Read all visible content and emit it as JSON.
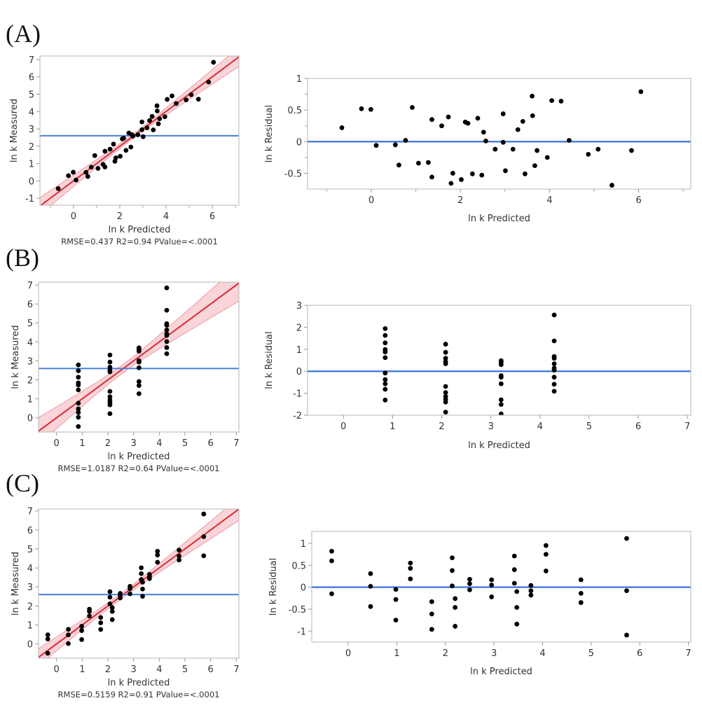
{
  "panels": [
    {
      "label": "(A)",
      "fit": {
        "xlabel": "ln k Predicted",
        "ylabel": "ln k Measured",
        "stats": "RMSE=0.437 R2=0.94 PValue=<.0001"
      },
      "residual": {
        "xlabel": "ln k Predicted",
        "ylabel": "ln k Residual"
      }
    },
    {
      "label": "(B)",
      "fit": {
        "xlabel": "ln k Predicted",
        "ylabel": "ln k Measured",
        "stats": "RMSE=1.0187 R2=0.64 PValue=<.0001"
      },
      "residual": {
        "xlabel": "ln k Predicted",
        "ylabel": "ln k Residual"
      }
    },
    {
      "label": "(C)",
      "fit": {
        "xlabel": "ln k Predicted",
        "ylabel": "ln k Measured",
        "stats": "RMSE=0.5159 R2=0.91 PValue=<.0001"
      },
      "residual": {
        "xlabel": "ln k Predicted",
        "ylabel": "ln k Residual"
      }
    }
  ],
  "colors": {
    "fit_line": "#d62d3a",
    "ci_band": "#f7c6cb",
    "ci_edge": "#f09aa4",
    "mean_line": "#4a7fdc",
    "points": "#000000",
    "frame": "#b5b5b5"
  },
  "chart_data": [
    {
      "id": "A-fit",
      "type": "scatter",
      "title": "",
      "xlabel": "ln k Predicted",
      "ylabel": "ln k Measured",
      "xlim": [
        -1.45,
        7.15
      ],
      "ylim": [
        -1.4,
        7.2
      ],
      "xticks": [
        0,
        2,
        4,
        6
      ],
      "xminor": [
        -1,
        1,
        3,
        5,
        7
      ],
      "yticks": [
        -1,
        0,
        1,
        2,
        3,
        4,
        5,
        6,
        7
      ],
      "mean_line": 2.6,
      "fit": {
        "slope": 1.0,
        "intercept": 0.0,
        "ci_halfwidth_at_mean": 0.12,
        "ci_halfwidth_at_ends": 0.55
      },
      "annotation": "RMSE=0.437 R2=0.94 PValue=<.0001",
      "x": [
        -0.66,
        -0.22,
        -0.01,
        0.11,
        0.54,
        0.62,
        0.77,
        0.92,
        1.06,
        1.28,
        1.36,
        1.36,
        1.58,
        1.73,
        1.79,
        1.83,
        2.02,
        2.11,
        2.17,
        2.27,
        2.39,
        2.48,
        2.52,
        2.57,
        2.78,
        2.96,
        2.96,
        3.01,
        3.18,
        3.29,
        3.4,
        3.45,
        3.61,
        3.62,
        3.67,
        3.72,
        3.95,
        4.05,
        4.26,
        4.44,
        4.87,
        5.09,
        5.4,
        5.84,
        6.05
      ],
      "y": [
        -0.44,
        0.3,
        0.5,
        0.05,
        0.49,
        0.25,
        0.79,
        1.46,
        0.72,
        0.95,
        1.71,
        0.8,
        1.83,
        2.12,
        1.13,
        1.33,
        1.42,
        2.42,
        2.46,
        1.76,
        2.76,
        1.95,
        2.67,
        2.58,
        2.66,
        3.4,
        2.95,
        2.55,
        3.06,
        3.48,
        3.72,
        2.94,
        4.33,
        4.03,
        3.29,
        3.58,
        3.7,
        4.7,
        4.9,
        4.46,
        4.67,
        4.97,
        4.71,
        5.7,
        6.84
      ]
    },
    {
      "id": "A-residual",
      "type": "scatter",
      "xlabel": "ln k Predicted",
      "ylabel": "ln k Residual",
      "xlim": [
        -1.43,
        7.17
      ],
      "ylim": [
        -0.75,
        1.0
      ],
      "xticks": [
        0,
        2,
        4,
        6
      ],
      "xminor": [
        -1,
        1,
        3,
        5,
        7
      ],
      "yticks": [
        -0.5,
        0,
        0.5,
        1
      ],
      "yminor": [
        -0.25,
        0.25,
        0.75
      ],
      "zero_line": 0,
      "x": [
        -0.66,
        -0.22,
        -0.01,
        0.11,
        0.54,
        0.62,
        0.77,
        0.92,
        1.06,
        1.28,
        1.36,
        1.36,
        1.58,
        1.73,
        1.79,
        1.83,
        2.02,
        2.11,
        2.17,
        2.27,
        2.39,
        2.48,
        2.52,
        2.57,
        2.78,
        2.96,
        2.96,
        3.01,
        3.18,
        3.29,
        3.4,
        3.45,
        3.61,
        3.62,
        3.67,
        3.72,
        3.95,
        4.05,
        4.26,
        4.44,
        4.87,
        5.09,
        5.4,
        5.84,
        6.05
      ],
      "y": [
        0.22,
        0.52,
        0.51,
        -0.06,
        -0.05,
        -0.37,
        0.02,
        0.54,
        -0.34,
        -0.33,
        0.35,
        -0.56,
        0.25,
        0.39,
        -0.66,
        -0.5,
        -0.6,
        0.31,
        0.29,
        -0.51,
        0.37,
        -0.53,
        0.15,
        0.01,
        -0.12,
        0.44,
        -0.01,
        -0.46,
        -0.12,
        0.19,
        0.32,
        -0.51,
        0.72,
        0.41,
        -0.38,
        -0.14,
        -0.25,
        0.65,
        0.64,
        0.02,
        -0.2,
        -0.12,
        -0.69,
        -0.14,
        0.79
      ]
    },
    {
      "id": "B-fit",
      "type": "scatter",
      "xlabel": "ln k Predicted",
      "ylabel": "ln k Measured",
      "xlim": [
        -0.7,
        7.1
      ],
      "ylim": [
        -0.75,
        7.15
      ],
      "xticks": [
        0,
        1,
        2,
        3,
        4,
        5,
        6,
        7
      ],
      "yticks": [
        0,
        1,
        2,
        3,
        4,
        5,
        6,
        7
      ],
      "mean_line": 2.6,
      "fit": {
        "slope": 1.0,
        "intercept": 0.0,
        "ci_halfwidth_at_mean": 0.22,
        "ci_halfwidth_at_ends": 0.95
      },
      "annotation": "RMSE=1.0187 R2=0.64 PValue=<.0001",
      "x": [
        0.85,
        0.85,
        0.85,
        0.85,
        0.85,
        0.85,
        0.85,
        0.85,
        0.85,
        0.85,
        0.85,
        2.08,
        2.08,
        2.08,
        2.08,
        2.08,
        2.08,
        2.08,
        2.08,
        2.08,
        2.08,
        2.08,
        3.21,
        3.21,
        3.21,
        3.21,
        3.21,
        3.21,
        3.21,
        3.21,
        3.21,
        4.29,
        4.29,
        4.29,
        4.29,
        4.29,
        4.29,
        4.29,
        4.29,
        4.29,
        4.29
      ],
      "y": [
        2.79,
        2.48,
        2.14,
        1.84,
        1.73,
        1.47,
        0.77,
        0.47,
        0.28,
        0.03,
        -0.46,
        3.31,
        2.94,
        2.67,
        2.51,
        2.42,
        1.39,
        1.11,
        0.93,
        0.81,
        0.68,
        0.22,
        3.69,
        3.61,
        3.51,
        3.01,
        2.94,
        2.64,
        1.91,
        1.7,
        1.27,
        6.85,
        5.67,
        4.96,
        4.88,
        4.63,
        4.43,
        4.34,
        4.02,
        3.7,
        3.38
      ]
    },
    {
      "id": "B-residual",
      "type": "scatter",
      "xlabel": "ln k Predicted",
      "ylabel": "ln k Residual",
      "xlim": [
        -0.73,
        7.07
      ],
      "ylim": [
        -2.0,
        3.0
      ],
      "xticks": [
        0,
        1,
        2,
        3,
        4,
        5,
        6,
        7
      ],
      "yticks": [
        -2,
        -1,
        0,
        1,
        2,
        3
      ],
      "zero_line": 0,
      "x": [
        0.85,
        0.85,
        0.85,
        0.85,
        0.85,
        0.85,
        0.85,
        0.85,
        0.85,
        0.85,
        0.85,
        2.08,
        2.08,
        2.08,
        2.08,
        2.08,
        2.08,
        2.08,
        2.08,
        2.08,
        2.08,
        2.08,
        3.21,
        3.21,
        3.21,
        3.21,
        3.21,
        3.21,
        3.21,
        3.21,
        3.21,
        4.29,
        4.29,
        4.29,
        4.29,
        4.29,
        4.29,
        4.29,
        4.29,
        4.29,
        4.29
      ],
      "y": [
        1.94,
        1.63,
        1.29,
        0.99,
        0.88,
        0.62,
        -0.08,
        -0.38,
        -0.57,
        -0.82,
        -1.31,
        1.23,
        0.86,
        0.59,
        0.43,
        0.34,
        -0.69,
        -0.97,
        -1.15,
        -1.27,
        -1.4,
        -1.86,
        0.48,
        0.4,
        0.3,
        -0.2,
        -0.27,
        -0.57,
        -1.3,
        -1.51,
        -1.94,
        2.56,
        1.38,
        0.67,
        0.59,
        0.34,
        0.14,
        0.05,
        -0.27,
        -0.59,
        -0.91
      ]
    },
    {
      "id": "C-fit",
      "type": "scatter",
      "xlabel": "ln k Predicted",
      "ylabel": "ln k Measured",
      "xlim": [
        -0.7,
        7.1
      ],
      "ylim": [
        -0.75,
        7.1
      ],
      "xticks": [
        0,
        1,
        2,
        3,
        4,
        5,
        6,
        7
      ],
      "yticks": [
        0,
        1,
        2,
        3,
        4,
        5,
        6,
        7
      ],
      "mean_line": 2.6,
      "fit": {
        "slope": 1.0,
        "intercept": 0.0,
        "ci_halfwidth_at_mean": 0.14,
        "ci_halfwidth_at_ends": 0.6
      },
      "annotation": "RMSE=0.5159 R2=0.91 PValue=<.0001",
      "x": [
        -0.34,
        -0.34,
        -0.34,
        0.46,
        0.46,
        0.46,
        0.98,
        0.98,
        0.98,
        1.28,
        1.28,
        1.28,
        1.72,
        1.72,
        1.72,
        2.08,
        2.08,
        2.08,
        2.17,
        2.17,
        2.17,
        2.48,
        2.48,
        2.48,
        2.86,
        2.86,
        2.86,
        3.3,
        3.3,
        3.3,
        3.35,
        3.35,
        3.35,
        3.62,
        3.62,
        3.62,
        3.93,
        3.93,
        3.93,
        4.77,
        4.77,
        4.77,
        5.73,
        5.73,
        5.73
      ],
      "y": [
        0.48,
        0.26,
        -0.49,
        0.77,
        0.48,
        0.02,
        0.93,
        0.7,
        0.23,
        1.83,
        1.71,
        1.47,
        1.39,
        1.11,
        0.76,
        2.75,
        2.46,
        2.11,
        1.91,
        1.71,
        1.28,
        2.66,
        2.56,
        2.42,
        3.03,
        2.91,
        2.64,
        4.01,
        3.7,
        3.39,
        3.25,
        2.89,
        2.51,
        3.66,
        3.54,
        3.44,
        4.88,
        4.68,
        4.3,
        4.94,
        4.63,
        4.42,
        6.84,
        5.65,
        4.64
      ]
    },
    {
      "id": "C-residual",
      "type": "scatter",
      "xlabel": "ln k Predicted",
      "ylabel": "ln k Residual",
      "xlim": [
        -0.75,
        7.05
      ],
      "ylim": [
        -1.25,
        1.27
      ],
      "xticks": [
        0,
        1,
        2,
        3,
        4,
        5,
        6,
        7
      ],
      "yticks": [
        -1,
        -0.5,
        0,
        0.5,
        1
      ],
      "zero_line": 0,
      "x": [
        -0.34,
        -0.34,
        -0.34,
        0.46,
        0.46,
        0.46,
        0.98,
        0.98,
        0.98,
        1.28,
        1.28,
        1.28,
        1.72,
        1.72,
        1.72,
        2.14,
        2.14,
        2.14,
        2.2,
        2.2,
        2.2,
        2.5,
        2.5,
        2.5,
        2.95,
        2.95,
        2.95,
        3.42,
        3.42,
        3.42,
        3.47,
        3.47,
        3.47,
        3.76,
        3.76,
        3.76,
        4.07,
        4.07,
        4.07,
        4.79,
        4.79,
        4.79,
        5.73,
        5.73,
        5.73
      ],
      "y": [
        0.82,
        0.6,
        -0.15,
        0.31,
        0.02,
        -0.44,
        -0.05,
        -0.28,
        -0.75,
        0.55,
        0.43,
        0.19,
        -0.33,
        -0.61,
        -0.96,
        0.67,
        0.38,
        0.03,
        -0.26,
        -0.46,
        -0.89,
        0.18,
        0.08,
        -0.06,
        0.17,
        0.05,
        -0.22,
        0.71,
        0.4,
        0.09,
        -0.1,
        -0.46,
        -0.84,
        0.04,
        -0.08,
        -0.18,
        0.95,
        0.75,
        0.37,
        0.17,
        -0.14,
        -0.35,
        1.11,
        -0.08,
        -1.09
      ]
    }
  ]
}
